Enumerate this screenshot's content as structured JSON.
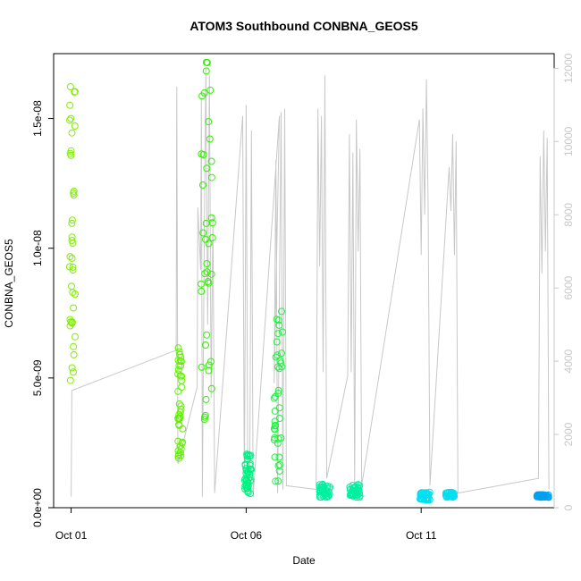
{
  "chart_data": {
    "type": "scatter",
    "title": "ATOM3 Southbound CONBNA_GEOS5",
    "xlabel": "Date",
    "ylabel": "CONBNA_GEOS5",
    "x_unit": "days since Oct 01",
    "xlim": [
      -0.5,
      13.8
    ],
    "ylim": [
      0,
      1.75e-08
    ],
    "x_ticks": [
      {
        "value": 0,
        "label": "Oct 01"
      },
      {
        "value": 5,
        "label": "Oct 06"
      },
      {
        "value": 10,
        "label": "Oct 11"
      }
    ],
    "y_ticks": [
      {
        "value": 0,
        "label": "0.0e+00"
      },
      {
        "value": 5e-09,
        "label": "5.0e-09"
      },
      {
        "value": 1e-08,
        "label": "1.0e-08"
      },
      {
        "value": 1.5e-08,
        "label": "1.5e-08"
      }
    ],
    "y2lim": [
      0,
      12400
    ],
    "y2_ticks": [
      0,
      2000,
      4000,
      6000,
      8000,
      10000,
      12000
    ],
    "marker_color_scale": "green to blue, decreasing concentration",
    "secondary_line_color": "#c8c8c8",
    "scatter_clusters": [
      {
        "x_start": -0.05,
        "x_end": 0.12,
        "y_min": 4.3e-09,
        "y_max": 1.64e-08,
        "color": "#7ff000"
      },
      {
        "x_start": 3.05,
        "x_end": 3.2,
        "y_min": 1.9e-09,
        "y_max": 6.2e-09,
        "color": "#60f000"
      },
      {
        "x_start": 3.7,
        "x_end": 4.05,
        "y_min": 3.1e-09,
        "y_max": 1.73e-08,
        "color": "#30f000"
      },
      {
        "x_start": 4.95,
        "x_end": 5.15,
        "y_min": 5e-10,
        "y_max": 2.1e-09,
        "color": "#00f080"
      },
      {
        "x_start": 5.8,
        "x_end": 6.05,
        "y_min": 1e-09,
        "y_max": 7.6e-09,
        "color": "#20f040"
      },
      {
        "x_start": 7.1,
        "x_end": 7.4,
        "y_min": 4e-10,
        "y_max": 9e-10,
        "color": "#00f0a0"
      },
      {
        "x_start": 7.95,
        "x_end": 8.25,
        "y_min": 4e-10,
        "y_max": 9e-10,
        "color": "#00f0a0"
      },
      {
        "x_start": 9.95,
        "x_end": 10.25,
        "y_min": 3e-10,
        "y_max": 6e-10,
        "color": "#00e0f0"
      },
      {
        "x_start": 10.7,
        "x_end": 10.95,
        "y_min": 4e-10,
        "y_max": 6e-10,
        "color": "#00e0f0"
      },
      {
        "x_start": 13.3,
        "x_end": 13.65,
        "y_min": 4e-10,
        "y_max": 5e-10,
        "color": "#00a0f0"
      }
    ],
    "altitude_line": [
      [
        0.0,
        300
      ],
      [
        0.02,
        3200
      ],
      [
        3.0,
        4300
      ],
      [
        3.02,
        11500
      ],
      [
        3.05,
        1200
      ],
      [
        3.6,
        3300
      ],
      [
        3.62,
        8200
      ],
      [
        3.7,
        6500
      ],
      [
        3.72,
        11200
      ],
      [
        3.75,
        300
      ],
      [
        3.8,
        7000
      ],
      [
        3.85,
        12000
      ],
      [
        3.9,
        5000
      ],
      [
        3.95,
        11800
      ],
      [
        4.0,
        3000
      ],
      [
        4.05,
        8000
      ],
      [
        4.1,
        400
      ],
      [
        4.9,
        10700
      ],
      [
        4.95,
        400
      ],
      [
        5.0,
        11000
      ],
      [
        5.05,
        300
      ],
      [
        5.1,
        400
      ],
      [
        5.15,
        10300
      ],
      [
        5.2,
        300
      ],
      [
        5.95,
        10700
      ],
      [
        5.8,
        3400
      ],
      [
        5.85,
        9500
      ],
      [
        5.9,
        400
      ],
      [
        6.0,
        10800
      ],
      [
        6.05,
        500
      ],
      [
        6.1,
        10900
      ],
      [
        6.15,
        600
      ],
      [
        7.0,
        500
      ],
      [
        7.05,
        10900
      ],
      [
        7.1,
        6600
      ],
      [
        7.15,
        10700
      ],
      [
        7.2,
        3700
      ],
      [
        7.25,
        11800
      ],
      [
        7.3,
        800
      ],
      [
        7.9,
        3600
      ],
      [
        7.95,
        10200
      ],
      [
        8.0,
        3700
      ],
      [
        8.05,
        9700
      ],
      [
        8.1,
        600
      ],
      [
        8.15,
        10600
      ],
      [
        8.2,
        7000
      ],
      [
        8.25,
        9800
      ],
      [
        8.3,
        600
      ],
      [
        9.95,
        10600
      ],
      [
        10.0,
        6900
      ],
      [
        10.05,
        10900
      ],
      [
        10.1,
        8000
      ],
      [
        10.15,
        11700
      ],
      [
        10.2,
        8200
      ],
      [
        10.25,
        600
      ],
      [
        10.8,
        9300
      ],
      [
        10.85,
        8100
      ],
      [
        10.9,
        10200
      ],
      [
        10.95,
        6900
      ],
      [
        11.0,
        10000
      ],
      [
        11.05,
        400
      ],
      [
        13.35,
        800
      ],
      [
        13.4,
        9600
      ],
      [
        13.45,
        6400
      ],
      [
        13.5,
        10300
      ],
      [
        13.55,
        7000
      ],
      [
        13.6,
        10100
      ],
      [
        13.65,
        500
      ]
    ]
  }
}
